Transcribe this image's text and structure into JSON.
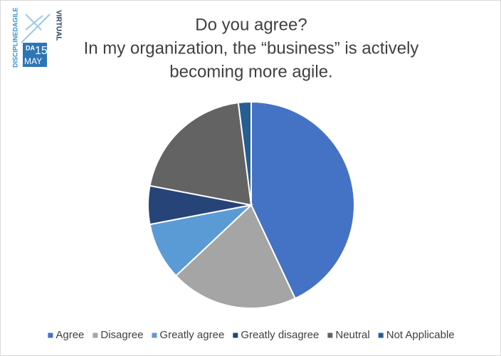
{
  "chart_data": {
    "type": "pie",
    "title": [
      "Do you agree?",
      "In my organization, the “business” is actively",
      "becoming more agile."
    ],
    "categories": [
      "Agree",
      "Disagree",
      "Greatly agree",
      "Greatly disagree",
      "Neutral",
      "Not Applicable"
    ],
    "values": [
      43,
      20,
      9,
      6,
      20,
      2
    ],
    "colors": [
      "#4472c4",
      "#a5a5a5",
      "#5b9bd5",
      "#264478",
      "#636363",
      "#255e91"
    ],
    "legend": "bottom"
  },
  "logo": {
    "brand": "DISCIPLINEDAGILE",
    "event": "VIRTUAL",
    "badge": "DA",
    "day": "15",
    "month": "MAY"
  }
}
